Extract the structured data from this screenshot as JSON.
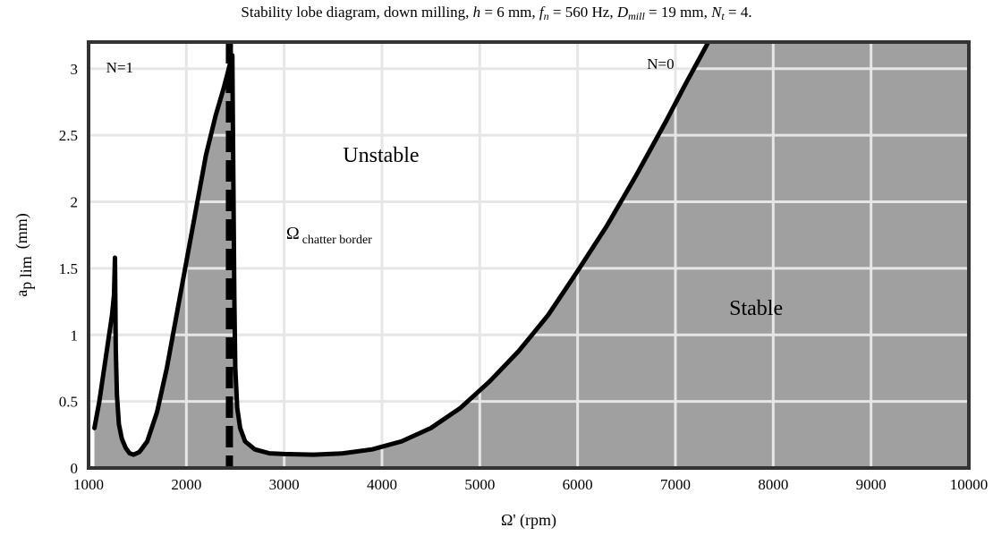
{
  "chart_data": {
    "type": "area",
    "title": {
      "prefix": "Stability lobe diagram, down milling, ",
      "parts": [
        {
          "sym": "h",
          "sub": "",
          "val": " = 6 mm, "
        },
        {
          "sym": "f",
          "sub": "n",
          "val": " = 560 Hz, "
        },
        {
          "sym": "D",
          "sub": "mill",
          "val": " = 19 mm, "
        },
        {
          "sym": "N",
          "sub": "t",
          "val": " = 4."
        }
      ]
    },
    "xlabel": "Ω' (rpm)",
    "ylabel": "a",
    "ylabel_sub": "p lim",
    "ylabel_unit": "(mm)",
    "xlim": [
      1000,
      10000
    ],
    "ylim": [
      0,
      3.2
    ],
    "xticks": [
      1000,
      2000,
      3000,
      4000,
      5000,
      6000,
      7000,
      8000,
      9000,
      10000
    ],
    "yticks": [
      0,
      0.5,
      1,
      1.5,
      2,
      2.5,
      3
    ],
    "ytick_labels": [
      "0",
      "0.5",
      "1",
      "1.5",
      "2",
      "2.5",
      "3"
    ],
    "grid": true,
    "colors": {
      "stable_fill": "#a0a0a0",
      "grid": "#e6e6e6",
      "curve": "#000000",
      "frame": "#333333"
    },
    "series": [
      {
        "points": [
          [
            1060,
            0.3
          ],
          [
            1110,
            0.5
          ],
          [
            1160,
            0.75
          ],
          [
            1210,
            1.0
          ],
          [
            1240,
            1.15
          ],
          [
            1260,
            1.3
          ],
          [
            1270,
            1.58
          ],
          [
            1278,
            0.9
          ],
          [
            1290,
            0.55
          ],
          [
            1310,
            0.33
          ],
          [
            1340,
            0.22
          ],
          [
            1380,
            0.15
          ],
          [
            1420,
            0.11
          ],
          [
            1460,
            0.1
          ],
          [
            1520,
            0.12
          ],
          [
            1600,
            0.2
          ],
          [
            1700,
            0.42
          ],
          [
            1800,
            0.75
          ],
          [
            1900,
            1.15
          ],
          [
            2000,
            1.55
          ],
          [
            2100,
            1.95
          ],
          [
            2200,
            2.35
          ],
          [
            2300,
            2.65
          ],
          [
            2380,
            2.85
          ],
          [
            2420,
            2.96
          ],
          [
            2450,
            3.05
          ],
          [
            2470,
            3.1
          ],
          [
            2480,
            2.2
          ],
          [
            2490,
            1.3
          ],
          [
            2500,
            0.75
          ],
          [
            2520,
            0.45
          ],
          [
            2550,
            0.3
          ],
          [
            2600,
            0.2
          ],
          [
            2700,
            0.14
          ],
          [
            2850,
            0.11
          ],
          [
            3000,
            0.105
          ],
          [
            3300,
            0.1
          ],
          [
            3600,
            0.11
          ],
          [
            3900,
            0.14
          ],
          [
            4200,
            0.2
          ],
          [
            4500,
            0.3
          ],
          [
            4800,
            0.45
          ],
          [
            5100,
            0.65
          ],
          [
            5400,
            0.88
          ],
          [
            5700,
            1.15
          ],
          [
            6000,
            1.48
          ],
          [
            6300,
            1.82
          ],
          [
            6600,
            2.2
          ],
          [
            6900,
            2.6
          ],
          [
            7100,
            2.88
          ],
          [
            7300,
            3.15
          ],
          [
            7350,
            3.22
          ]
        ]
      }
    ],
    "chatter_border_x": 2440,
    "annotations": [
      {
        "text": "N=1",
        "x": 1180,
        "y": 2.97
      },
      {
        "text": "N=0",
        "x": 6710,
        "y": 3.0
      },
      {
        "text": "Unstable",
        "x": 3600,
        "y": 2.3
      },
      {
        "text": "Ω",
        "sub": "chatter border",
        "x": 3020,
        "y": 1.72
      },
      {
        "text": "Stable",
        "x": 7550,
        "y": 1.15
      }
    ]
  }
}
